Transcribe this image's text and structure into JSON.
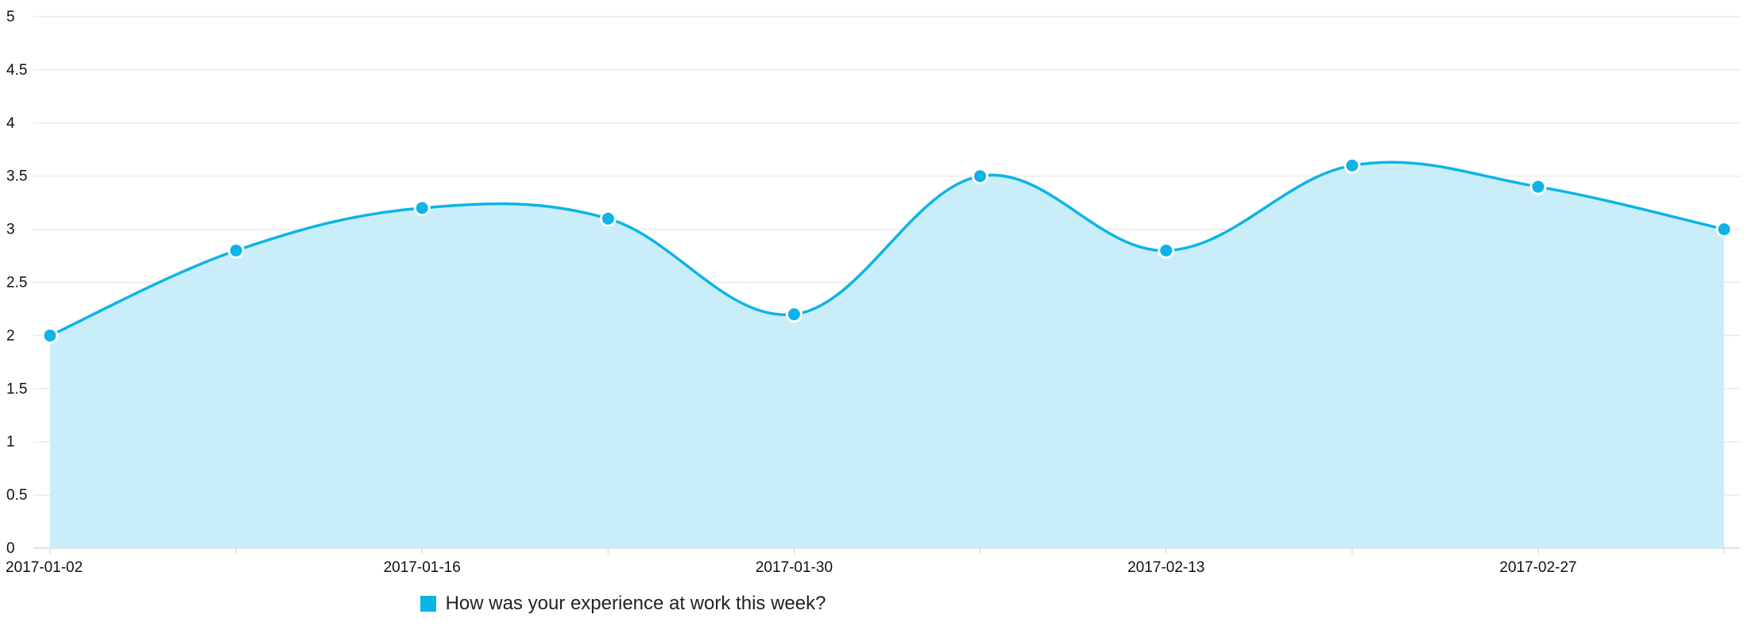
{
  "chart_data": {
    "type": "area",
    "x": [
      "2017-01-02",
      "2017-01-09",
      "2017-01-16",
      "2017-01-23",
      "2017-01-30",
      "2017-02-06",
      "2017-02-13",
      "2017-02-20",
      "2017-02-27",
      "2017-03-06"
    ],
    "x_tick_labels": [
      "2017-01-02",
      "2017-01-16",
      "2017-01-30",
      "2017-02-13",
      "2017-02-27"
    ],
    "series": [
      {
        "name": "How was your experience at work this week?",
        "values": [
          2.0,
          2.8,
          3.2,
          3.1,
          2.2,
          3.5,
          2.8,
          3.6,
          3.4,
          3.0
        ],
        "color": "#0db4e6",
        "fill_color": "#c9eef9"
      }
    ],
    "ylim": [
      0,
      5
    ],
    "y_ticks": [
      "0",
      "0.5",
      "1",
      "1.5",
      "2",
      "2.5",
      "3",
      "3.5",
      "4",
      "4.5",
      "5"
    ],
    "grid": true,
    "legend_position": "bottom-center",
    "title": "",
    "xlabel": "",
    "ylabel": ""
  },
  "legend": {
    "label": "How was your experience at work this week?",
    "color": "#0db4e6"
  }
}
